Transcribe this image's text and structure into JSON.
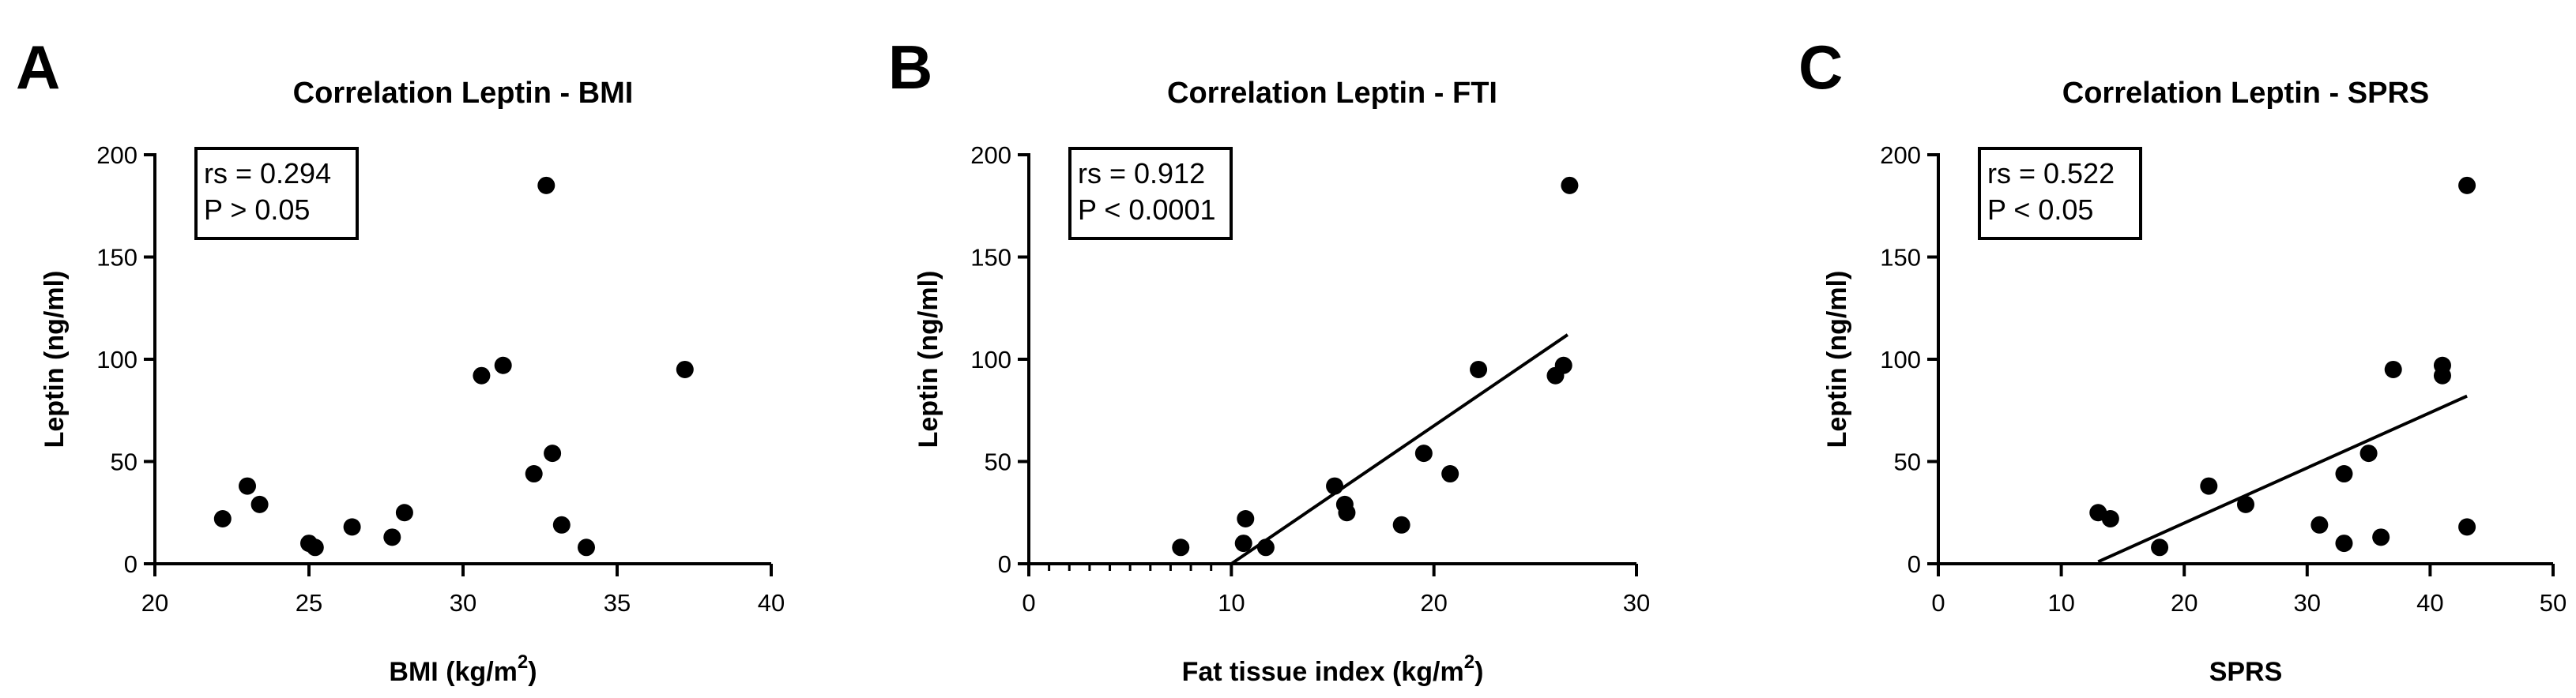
{
  "chart_data": [
    {
      "type": "scatter",
      "panel": "A",
      "title": "Correlation Leptin - BMI",
      "xlabel": "BMI (kg/m",
      "xlabel_sup": "2",
      "xlabel_end": ")",
      "ylabel": "Leptin (ng/ml)",
      "xlim": [
        20,
        40
      ],
      "ylim": [
        0,
        200
      ],
      "xticks": [
        20,
        25,
        30,
        35,
        40
      ],
      "yticks": [
        0,
        50,
        100,
        150,
        200
      ],
      "stats": [
        "rs = 0.294",
        "P > 0.05"
      ],
      "regression": null,
      "x": [
        22.2,
        23.0,
        23.4,
        25.0,
        25.2,
        26.4,
        27.7,
        28.1,
        30.6,
        31.3,
        32.3,
        32.7,
        32.9,
        33.2,
        34.0,
        37.2
      ],
      "y": [
        22,
        38,
        29,
        10,
        8,
        18,
        13,
        25,
        92,
        97,
        44,
        185,
        54,
        19,
        8,
        95
      ]
    },
    {
      "type": "scatter",
      "panel": "B",
      "title": "Correlation Leptin - FTI",
      "xlabel": "Fat tissue index (kg/m",
      "xlabel_sup": "2",
      "xlabel_end": ")",
      "ylabel": "Leptin (ng/ml)",
      "xlim": [
        0,
        30
      ],
      "ylim": [
        0,
        200
      ],
      "xticks": [
        0,
        10,
        20,
        30
      ],
      "yticks": [
        0,
        50,
        100,
        150,
        200
      ],
      "stats": [
        "rs = 0.912",
        "P < 0.0001"
      ],
      "regression": {
        "x": [
          10,
          26.6
        ],
        "y": [
          0,
          112
        ]
      },
      "x": [
        7.5,
        10.6,
        10.7,
        11.7,
        15.1,
        15.6,
        15.7,
        18.4,
        19.5,
        20.8,
        22.2,
        26.0,
        26.4,
        26.7
      ],
      "y": [
        8,
        10,
        22,
        8,
        38,
        29,
        25,
        19,
        54,
        44,
        95,
        92,
        97,
        185
      ]
    },
    {
      "type": "scatter",
      "panel": "C",
      "title": "Correlation Leptin - SPRS",
      "xlabel": "SPRS",
      "xlabel_sup": "",
      "xlabel_end": "",
      "ylabel": "Leptin (ng/ml)",
      "xlim": [
        0,
        50
      ],
      "ylim": [
        0,
        200
      ],
      "xticks": [
        0,
        10,
        20,
        30,
        40,
        50
      ],
      "yticks": [
        0,
        50,
        100,
        150,
        200
      ],
      "stats": [
        "rs = 0.522",
        "P < 0.05"
      ],
      "regression": {
        "x": [
          13,
          43
        ],
        "y": [
          1,
          82
        ]
      },
      "x": [
        13,
        14,
        18,
        22,
        25,
        31,
        33,
        33,
        35,
        36,
        37,
        41,
        41,
        43,
        43
      ],
      "y": [
        25,
        22,
        8,
        38,
        29,
        19,
        10,
        44,
        54,
        13,
        95,
        97,
        92,
        185,
        18
      ]
    }
  ]
}
